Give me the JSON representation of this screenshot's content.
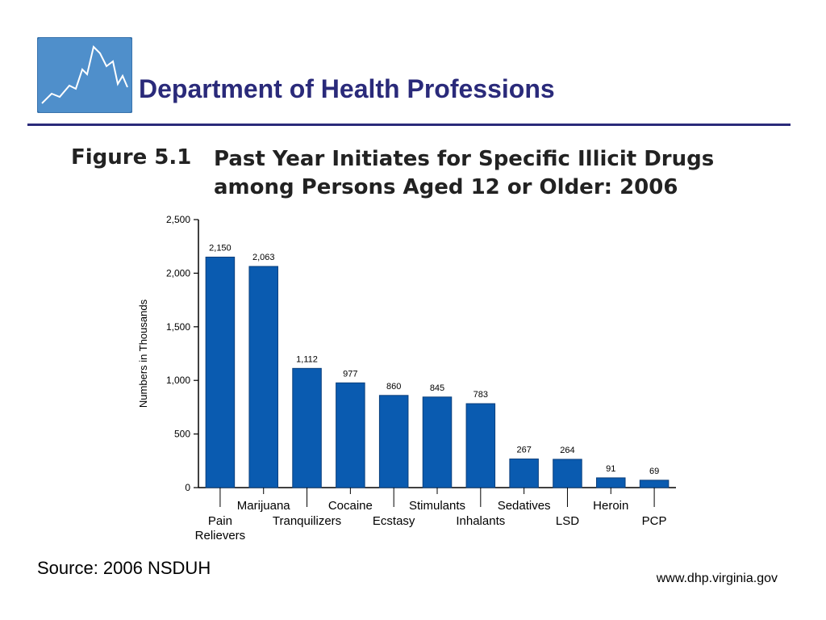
{
  "header": {
    "title": "Department of Health Professions"
  },
  "figure": {
    "label": "Figure 5.1",
    "title_line1": "Past Year Initiates for Specific Illicit Drugs",
    "title_line2": "among Persons Aged 12 or Older: 2006"
  },
  "chart_data": {
    "type": "bar",
    "ylabel": "Numbers in Thousands",
    "xlabel": "",
    "ylim": [
      0,
      2500
    ],
    "yticks": [
      0,
      500,
      1000,
      1500,
      2000,
      2500
    ],
    "ytick_labels": [
      "0",
      "500",
      "1,000",
      "1,500",
      "2,000",
      "2,500"
    ],
    "categories": [
      [
        "Pain",
        "Relievers"
      ],
      [
        "Marijuana"
      ],
      [
        "Tranquilizers"
      ],
      [
        "Cocaine"
      ],
      [
        "Ecstasy"
      ],
      [
        "Stimulants"
      ],
      [
        "Inhalants"
      ],
      [
        "Sedatives"
      ],
      [
        "LSD"
      ],
      [
        "Heroin"
      ],
      [
        "PCP"
      ]
    ],
    "values": [
      2150,
      2063,
      1112,
      977,
      860,
      845,
      783,
      267,
      264,
      91,
      69
    ],
    "value_labels": [
      "2,150",
      "2,063",
      "1,112",
      "977",
      "860",
      "845",
      "783",
      "267",
      "264",
      "91",
      "69"
    ],
    "grid": false,
    "bar_color": "#0a5bb0"
  },
  "source": "Source: 2006 NSDUH",
  "footer": {
    "url": "www.dhp.virginia.gov"
  },
  "colors": {
    "title": "#2a2a7a",
    "logo_bg": "#4f8fcb"
  }
}
